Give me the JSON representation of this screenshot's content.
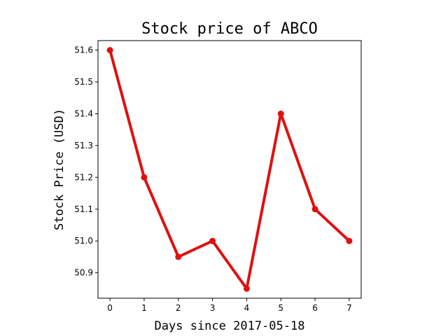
{
  "chart_data": {
    "type": "line",
    "title": "Stock price of ABCO",
    "xlabel": "Days since 2017-05-18",
    "ylabel": "Stock Price (USD)",
    "x": [
      0,
      1,
      2,
      3,
      4,
      5,
      6,
      7
    ],
    "series": [
      {
        "values": [
          51.6,
          51.2,
          50.95,
          51.0,
          50.85,
          51.4,
          51.1,
          51.0
        ],
        "color": "#e01010"
      }
    ],
    "xticks": [
      "0",
      "1",
      "2",
      "3",
      "4",
      "5",
      "6",
      "7"
    ],
    "yticks": [
      "50.9",
      "51.0",
      "51.1",
      "51.2",
      "51.3",
      "51.4",
      "51.5",
      "51.6"
    ],
    "xlim": [
      -0.35,
      7.35
    ],
    "ylim": [
      50.82,
      51.63
    ],
    "grid": false,
    "legend": "none"
  }
}
